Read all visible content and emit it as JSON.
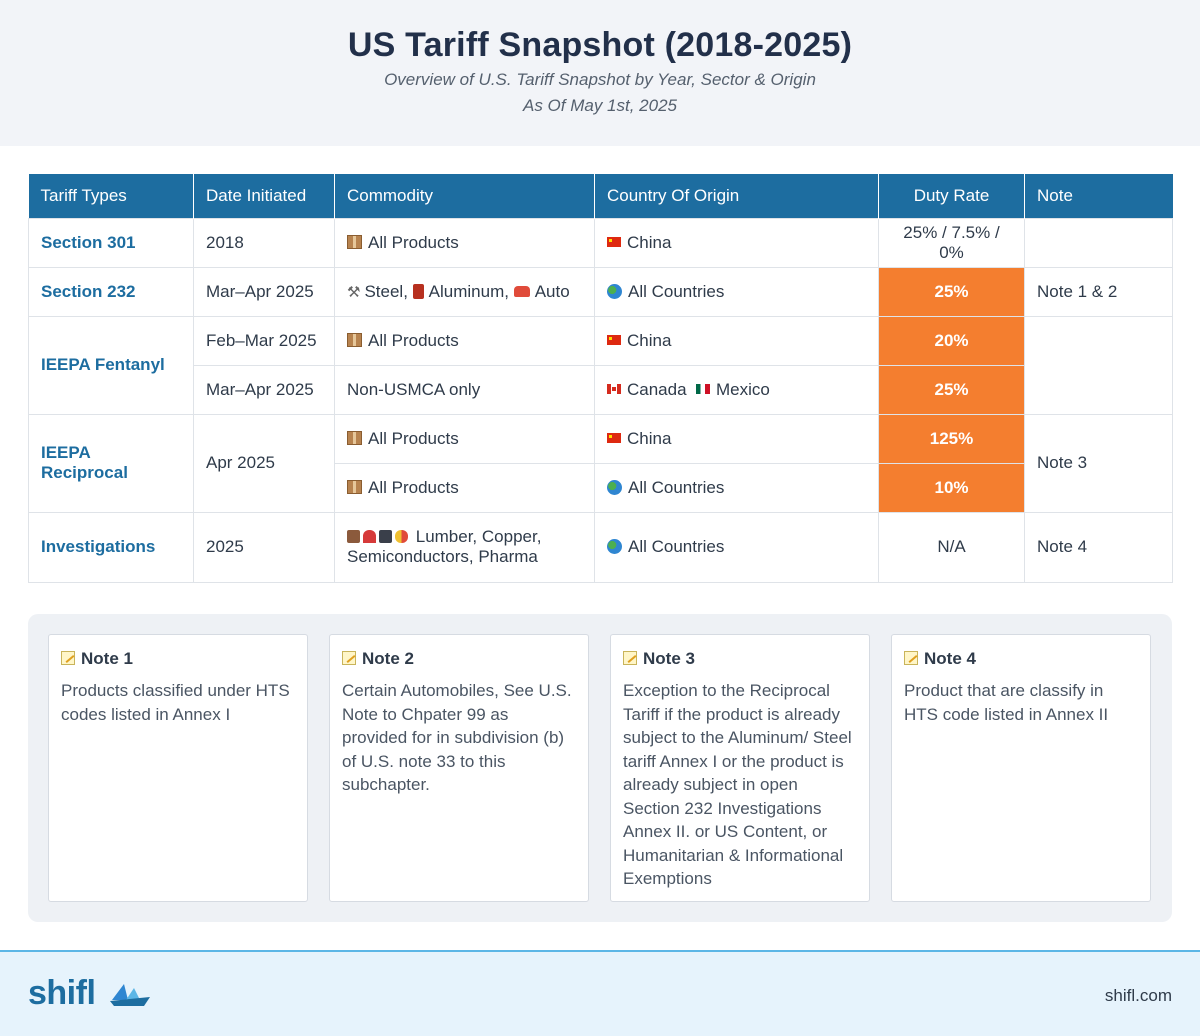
{
  "header": {
    "title": "US Tariff Snapshot (2018-2025)",
    "subtitle": "Overview of U.S. Tariff Snapshot by Year, Sector & Origin",
    "as_of": "As Of May 1st, 2025"
  },
  "table": {
    "columns": [
      "Tariff Types",
      "Date Initiated",
      "Commodity",
      "Country Of Origin",
      "Duty Rate",
      "Note"
    ],
    "rows": [
      {
        "type": "Section 301",
        "date": "2018",
        "commodity": "All Products",
        "origin": "China",
        "rate": "25% / 7.5% / 0%",
        "note": ""
      },
      {
        "type": "Section 232",
        "date": "Mar–Apr 2025",
        "commodity": "Steel, Aluminum, Auto",
        "origin": "All Countries",
        "rate": "25%",
        "note": "Note 1 & 2"
      },
      {
        "type": "IEEPA Fentanyl",
        "date": "Feb–Mar 2025",
        "commodity": "All Products",
        "origin": "China",
        "rate": "20%",
        "note": ""
      },
      {
        "type": "",
        "date": "Mar–Apr 2025",
        "commodity": "Non-USMCA only",
        "origin": "Canada",
        "origin2": "Mexico",
        "rate": "25%",
        "note": ""
      },
      {
        "type": "IEEPA Reciprocal",
        "date": "Apr 2025",
        "commodity": "All Products",
        "origin": "China",
        "rate": "125%",
        "note": "Note 3"
      },
      {
        "type": "",
        "date": "",
        "commodity": "All Products",
        "origin": "All Countries",
        "rate": "10%",
        "note": ""
      },
      {
        "type": "Investigations",
        "date": "2025",
        "commodity": "Lumber, Copper, Semiconductors, Pharma",
        "origin": "All Countries",
        "rate": "N/A",
        "note": "Note 4"
      }
    ],
    "steel": "Steel,",
    "aluminum": "Aluminum,",
    "auto": "Auto"
  },
  "notes": [
    {
      "title": "Note 1",
      "body": "Products classified under HTS codes listed in Annex I"
    },
    {
      "title": "Note 2",
      "body": "Certain Automobiles, See U.S. Note to Chpater 99 as provided for in subdivision (b) of U.S. note 33 to this subchapter."
    },
    {
      "title": "Note 3",
      "body": "Exception to the Reciprocal Tariff if the product is already subject to the Aluminum/ Steel tariff Annex I or the product is already subject in open Section 232 Investigations Annex II. or US Content, or Humanitarian & Informational Exemptions"
    },
    {
      "title": "Note 4",
      "body": "Product that are classify in HTS code listed in Annex II"
    }
  ],
  "footer": {
    "logo": "shifl",
    "site": "shifl.com"
  },
  "colors": {
    "header_bg": "#1d6da0",
    "highlight": "#f47e2f",
    "footer_bg": "#e6f3fc"
  },
  "icons": [
    "package-icon",
    "tools-icon",
    "barrel-icon",
    "car-icon",
    "globe-icon",
    "china-flag-icon",
    "canada-flag-icon",
    "mexico-flag-icon",
    "memo-icon",
    "boat-logo-icon"
  ]
}
